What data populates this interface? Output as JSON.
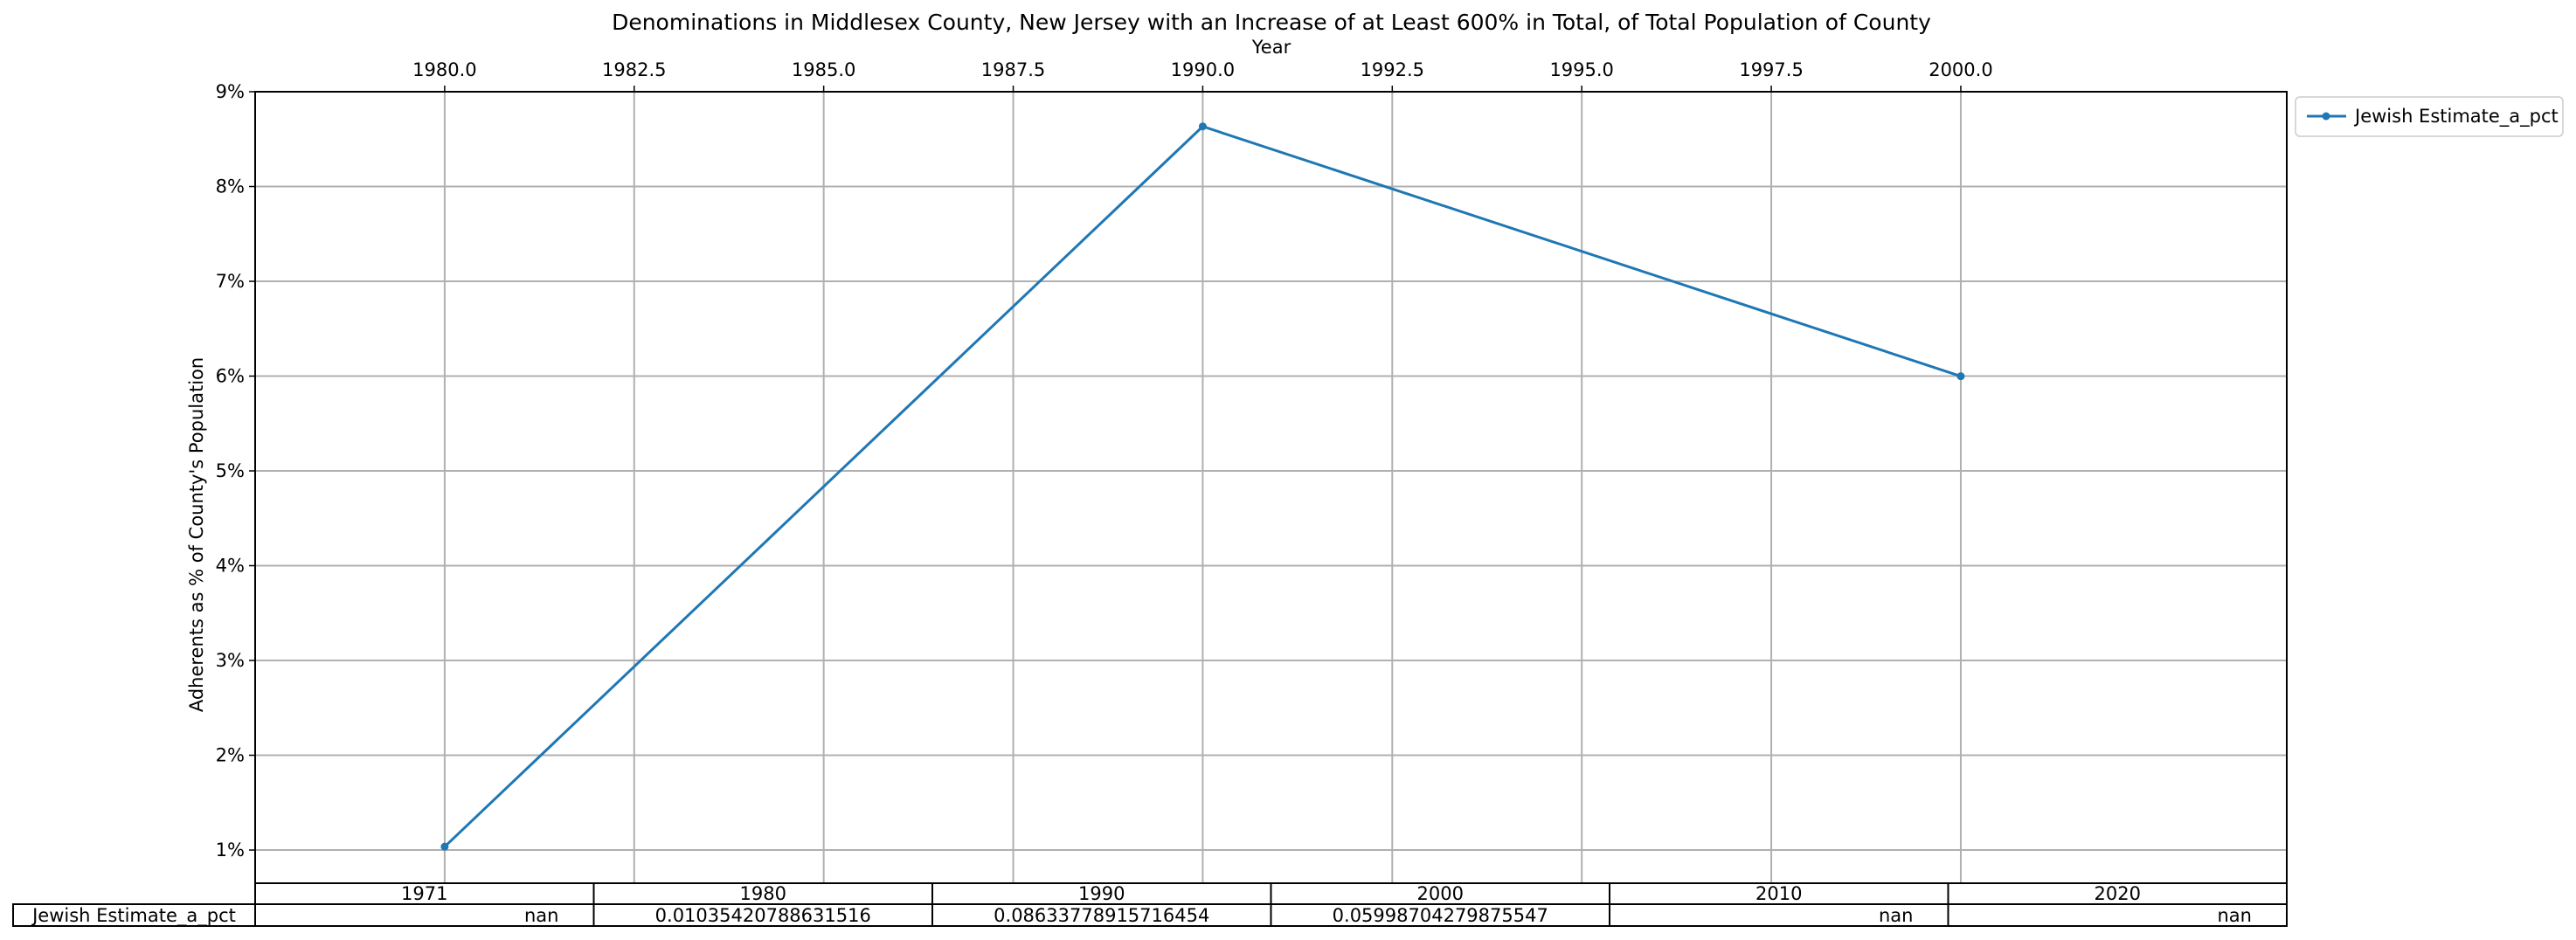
{
  "chart_data": {
    "type": "line",
    "title": "Denominations in Middlesex County, New Jersey with an Increase of at Least 600% in Total, of Total Population of County",
    "xlabel": "Year",
    "ylabel": "Adherents as % of County's Population",
    "xlim": [
      1977.5,
      2004.3
    ],
    "ylim": [
      0.0065,
      0.09
    ],
    "x_ticks": [
      "1980.0",
      "1982.5",
      "1985.0",
      "1987.5",
      "1990.0",
      "1992.5",
      "1995.0",
      "1997.5",
      "2000.0"
    ],
    "y_ticks": [
      "1%",
      "2%",
      "3%",
      "4%",
      "5%",
      "6%",
      "7%",
      "8%",
      "9%"
    ],
    "grid": true,
    "legend_position": "outside-top-right",
    "series": [
      {
        "name": "Jewish Estimate_a_pct",
        "color": "#1f77b4",
        "marker": "circle",
        "points": [
          {
            "x": 1980,
            "y": 0.01035420788631516
          },
          {
            "x": 1990,
            "y": 0.08633778915716454
          },
          {
            "x": 2000,
            "y": 0.05998704279875547
          }
        ]
      }
    ],
    "table": {
      "columns": [
        "1971",
        "1980",
        "1990",
        "2000",
        "2010",
        "2020"
      ],
      "rows": [
        {
          "label": "Jewish Estimate_a_pct",
          "cells": [
            "nan",
            "0.01035420788631516",
            "0.08633778915716454",
            "0.05998704279875547",
            "nan",
            "nan"
          ]
        }
      ]
    }
  }
}
